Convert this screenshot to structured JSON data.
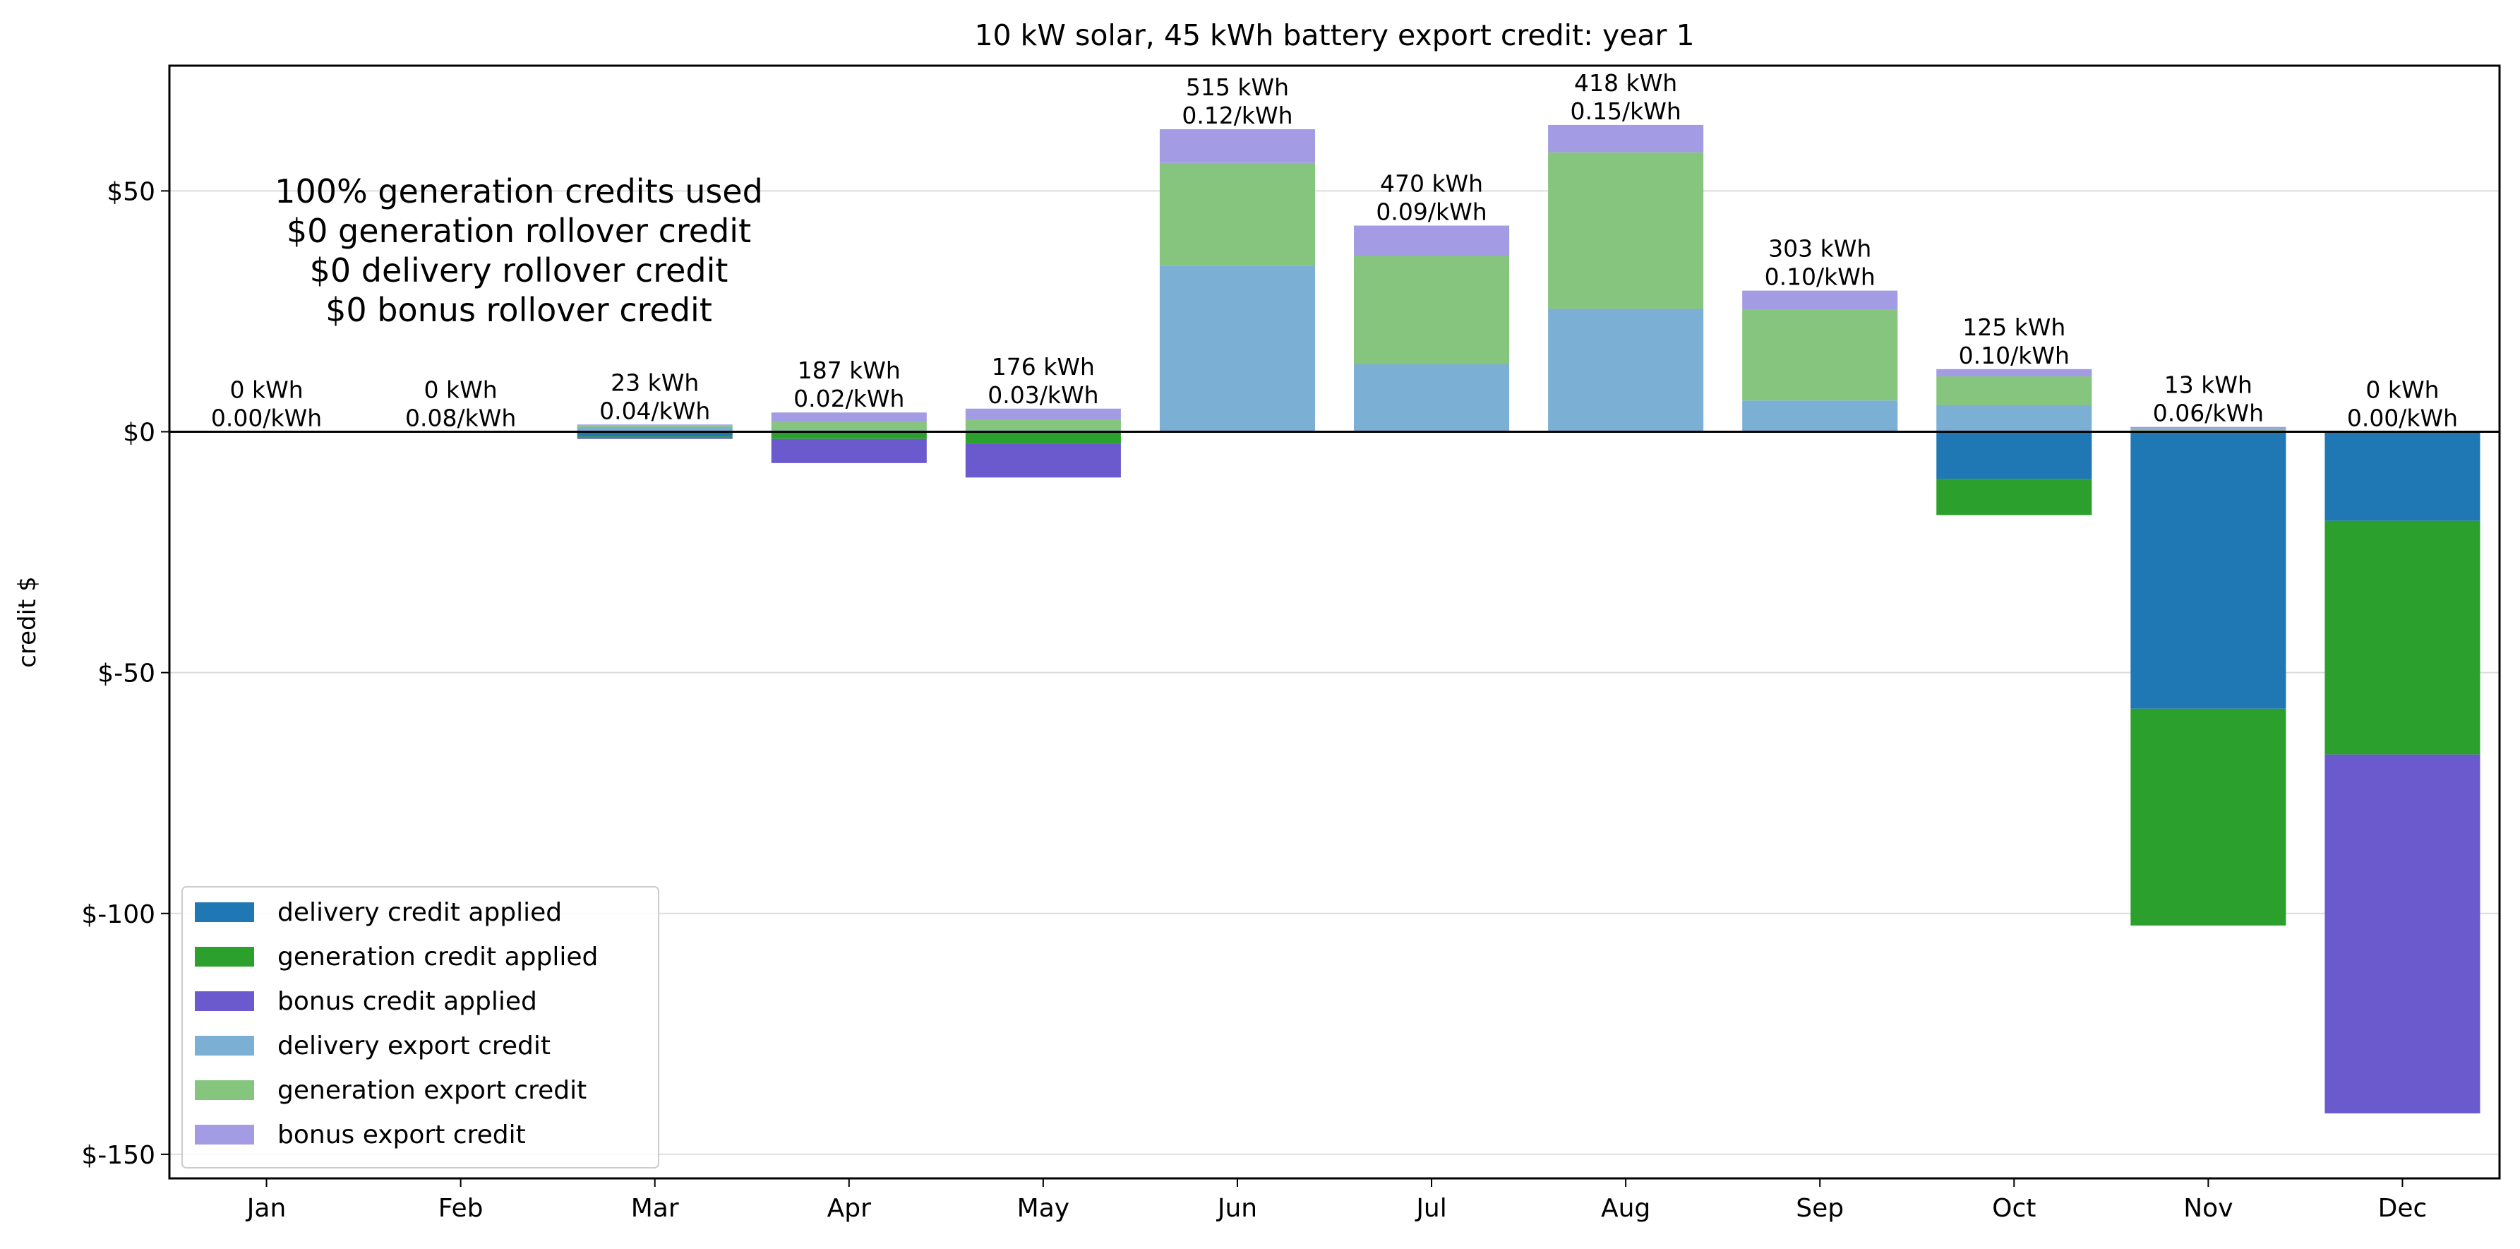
{
  "chart_data": {
    "type": "bar",
    "stacked": true,
    "title": "10 kW solar, 45 kWh battery export credit: year 1",
    "xlabel": "",
    "ylabel": "credit $",
    "ylim": [
      -155,
      76
    ],
    "yticks": [
      50,
      0,
      -50,
      -100,
      -150
    ],
    "ytick_labels": [
      "$50",
      "$0",
      "$-50",
      "$-100",
      "$-150"
    ],
    "grid": "horizontal",
    "categories": [
      "Jan",
      "Feb",
      "Mar",
      "Apr",
      "May",
      "Jun",
      "Jul",
      "Aug",
      "Sep",
      "Oct",
      "Nov",
      "Dec"
    ],
    "series": [
      {
        "name": "delivery credit applied",
        "color": "#1f77b4",
        "values": [
          0,
          0,
          -1,
          0,
          0,
          0,
          0,
          0,
          0,
          -9.8,
          -57.5,
          -18.5
        ]
      },
      {
        "name": "generation credit applied",
        "color": "#2ca02c",
        "values": [
          0,
          0,
          -0.3,
          -1.5,
          -2.5,
          0,
          0,
          0,
          0,
          -7.5,
          -45,
          -48.5
        ]
      },
      {
        "name": "bonus credit applied",
        "color": "#6a5acd",
        "values": [
          0,
          0,
          -0.2,
          -5,
          -7,
          0,
          0,
          0,
          0,
          0,
          0,
          -74.5
        ]
      },
      {
        "name": "delivery export credit",
        "color": "#7bafd4",
        "values": [
          0,
          0,
          1,
          0.3,
          0.3,
          34.5,
          14,
          25.5,
          6.5,
          5.5,
          0.3,
          0
        ]
      },
      {
        "name": "generation export credit",
        "color": "#86c57e",
        "values": [
          0,
          0,
          0.3,
          1.7,
          2.2,
          21.3,
          22.5,
          32.5,
          18.8,
          6,
          0.3,
          0
        ]
      },
      {
        "name": "bonus export credit",
        "color": "#a39be3",
        "values": [
          0,
          0,
          0.2,
          2,
          2.3,
          7,
          6.3,
          5.7,
          4,
          1.5,
          0.4,
          0
        ]
      }
    ],
    "bar_labels": [
      [
        "0 kWh",
        "0.00/kWh"
      ],
      [
        "0 kWh",
        "0.08/kWh"
      ],
      [
        "23 kWh",
        "0.04/kWh"
      ],
      [
        "187 kWh",
        "0.02/kWh"
      ],
      [
        "176 kWh",
        "0.03/kWh"
      ],
      [
        "515 kWh",
        "0.12/kWh"
      ],
      [
        "470 kWh",
        "0.09/kWh"
      ],
      [
        "418 kWh",
        "0.15/kWh"
      ],
      [
        "303 kWh",
        "0.10/kWh"
      ],
      [
        "125 kWh",
        "0.10/kWh"
      ],
      [
        "13 kWh",
        "0.06/kWh"
      ],
      [
        "0 kWh",
        "0.00/kWh"
      ]
    ],
    "annotation": [
      "100% generation credits used",
      "$0 generation rollover credit",
      "$0 delivery rollover credit",
      "$0 bonus rollover credit"
    ],
    "legend_position": "lower left"
  }
}
